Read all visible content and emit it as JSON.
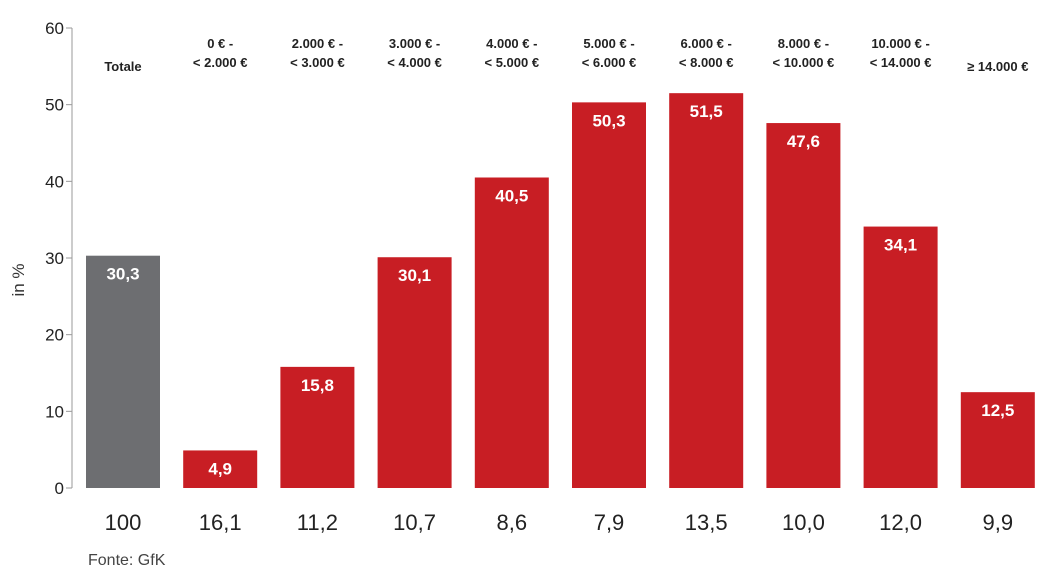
{
  "chart_data": {
    "type": "bar",
    "categories": [
      [
        "Totale"
      ],
      [
        "0 € -",
        "< 2.000 €"
      ],
      [
        "2.000 € -",
        "< 3.000 €"
      ],
      [
        "3.000 € -",
        "< 4.000 €"
      ],
      [
        "4.000 € -",
        "< 5.000 €"
      ],
      [
        "5.000 € -",
        "< 6.000 €"
      ],
      [
        "6.000 € -",
        "< 8.000 €"
      ],
      [
        "8.000 € -",
        "< 10.000 €"
      ],
      [
        "10.000 € -",
        "< 14.000 €"
      ],
      [
        "≥ 14.000 €"
      ]
    ],
    "values": [
      30.3,
      4.9,
      15.8,
      30.1,
      40.5,
      50.3,
      51.5,
      47.6,
      34.1,
      12.5
    ],
    "value_labels": [
      "30,3",
      "4,9",
      "15,8",
      "30,1",
      "40,5",
      "50,3",
      "51,5",
      "47,6",
      "34,1",
      "12,5"
    ],
    "bottom_labels": [
      "100",
      "16,1",
      "11,2",
      "10,7",
      "8,6",
      "7,9",
      "13,5",
      "10,0",
      "12,0",
      "9,9"
    ],
    "ylabel": "in %",
    "ylim": [
      0,
      60
    ],
    "yticks": [
      0,
      10,
      20,
      30,
      40,
      50,
      60
    ],
    "grid": false,
    "colors": {
      "total": "#6d6e71",
      "bars": "#c81e24",
      "axis": "#999999"
    },
    "source": "Fonte: GfK"
  }
}
